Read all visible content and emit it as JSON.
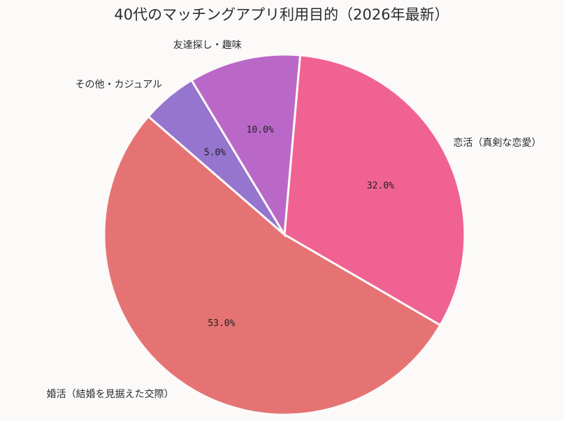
{
  "chart_data": {
    "type": "pie",
    "title": "40代のマッチングアプリ利用目的（2026年最新）",
    "start_angle_deg": 85,
    "direction": "clockwise",
    "slices": [
      {
        "label": "恋活（真剣な恋愛）",
        "value": 32.0,
        "pct_text": "32.0%",
        "color": "#f06292"
      },
      {
        "label": "婚活（結婚を見据えた交際）",
        "value": 53.0,
        "pct_text": "53.0%",
        "color": "#e57373"
      },
      {
        "label": "その他・カジュアル",
        "value": 5.0,
        "pct_text": "5.0%",
        "color": "#9575cd"
      },
      {
        "label": "友達探し・趣味",
        "value": 10.0,
        "pct_text": "10.0%",
        "color": "#ba68c8"
      }
    ]
  }
}
